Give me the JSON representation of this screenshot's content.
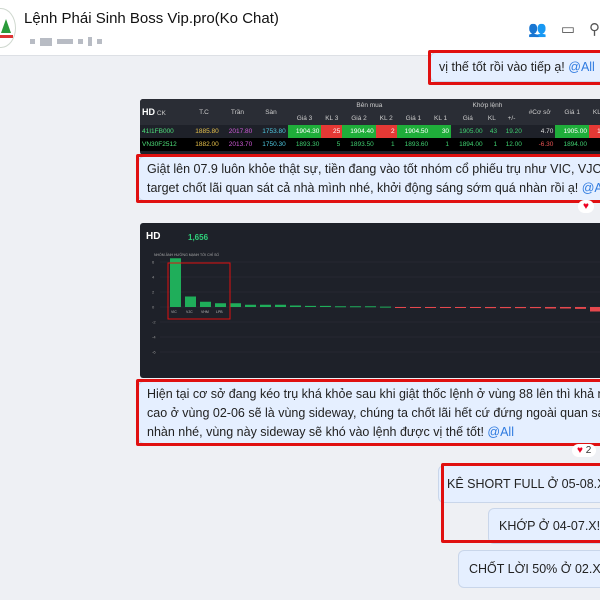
{
  "header": {
    "title": "Lệnh Phái Sinh Boss Vip.pro(Ko Chat)",
    "icons": [
      "add-member-icon",
      "video-call-icon",
      "search-icon"
    ]
  },
  "messages": [
    {
      "text": "vị thế tốt rồi vào tiếp ạ!",
      "mention": "@All"
    },
    {
      "text_line1": "Giật lên 07.9 luôn khỏe thật sự, tiền đang vào tốt nhóm cổ phiếu trụ như VIC, VJC. Đ",
      "text_line2": "target chốt lãi quan sát cả nhà mình nhé, khởi động sáng sớm quá nhàn rồi ạ!",
      "mention": "@All"
    },
    {
      "text_line1": "Hiện tại cơ sở đang kéo trụ khá khỏe sau khi giật thốc lệnh ở vùng 88 lên thì khả năn",
      "text_line2": "cao ở vùng 02-06 sẽ là vùng sideway, chúng ta chốt lãi hết cứ đứng ngoài quan sát c",
      "text_line3": "nhàn nhé, vùng này sideway sẽ khó vào lệnh được vị thế tốt!",
      "mention": "@All",
      "reaction_count": "2"
    },
    {
      "text": "KÊ SHORT FULL Ở 05-08.X!",
      "mention": "@"
    },
    {
      "text": "KHỚP Ở 04-07.X!",
      "mention": "@"
    },
    {
      "text": "CHỐT LỜI 50% Ở 02.X!",
      "mention": "@"
    }
  ],
  "board": {
    "logo": "HD",
    "group_headers": {
      "buy": "Bên mua",
      "match": "Khớp lệnh"
    },
    "columns": [
      "CK",
      "T.C",
      "Trần",
      "Sàn",
      "Giá 3",
      "KL 3",
      "Giá 2",
      "KL 2",
      "Giá 1",
      "KL 1",
      "Giá",
      "KL",
      "+/-",
      "#Cơ sở",
      "Giá 1",
      "KL 1"
    ],
    "rows": [
      [
        "41I1FB000",
        "1885.80",
        "2017.80",
        "1753.80",
        "1904.30",
        "25",
        "1904.40",
        "2",
        "1904.50",
        "30",
        "1905.00",
        "43",
        "19.20",
        "4.70",
        "1905.00",
        "101"
      ],
      [
        "VN30F2512",
        "1882.00",
        "2013.70",
        "1750.30",
        "1893.30",
        "5",
        "1893.50",
        "1",
        "1893.60",
        "1",
        "1894.00",
        "1",
        "12.00",
        "-6.30",
        "1894.00",
        "8"
      ]
    ]
  },
  "chart_data": {
    "type": "bar",
    "logo": "HD",
    "index_value": "1,656",
    "title": "NHÓM ẢNH HƯỞNG MẠNH TỚI CHỈ SỐ",
    "ylim": [
      -6,
      7
    ],
    "yticks": [
      "6",
      "4",
      "2",
      "0",
      "-2",
      "-4",
      "-6"
    ],
    "categories": [
      "VIC",
      "VJC",
      "VHM",
      "LPB",
      "",
      "",
      "",
      "",
      "",
      "",
      "",
      "",
      "",
      "",
      "",
      "",
      "",
      "",
      "",
      "",
      "",
      "",
      "",
      "",
      "",
      "",
      "",
      "",
      "",
      ""
    ],
    "values": [
      6.5,
      1.4,
      0.7,
      0.5,
      0.5,
      0.3,
      0.3,
      0.3,
      0.2,
      0.15,
      0.15,
      0.1,
      0.1,
      0.1,
      0.05,
      -0.1,
      -0.1,
      -0.1,
      -0.1,
      -0.1,
      -0.1,
      -0.15,
      -0.15,
      -0.15,
      -0.15,
      -0.2,
      -0.2,
      -0.25,
      -0.6,
      -0.7
    ],
    "colors": {
      "positive": "#1fae5a",
      "negative": "#e5484d"
    }
  }
}
